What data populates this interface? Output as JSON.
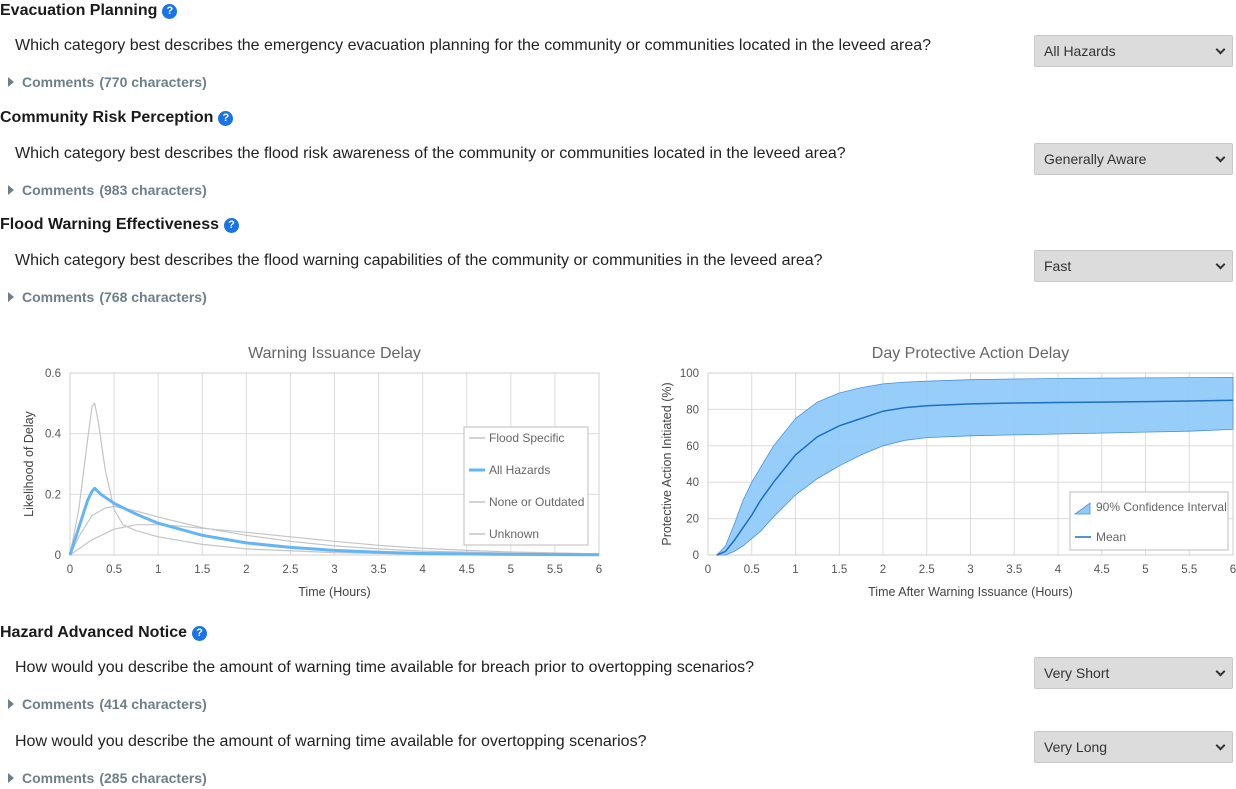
{
  "sections": {
    "evacuation": {
      "title": "Evacuation Planning",
      "question": "Which category best describes the emergency evacuation planning for the community or communities located in the leveed area?",
      "selected": "All Hazards",
      "comments_label": "Comments",
      "comments_count": "(770 characters)"
    },
    "risk_perception": {
      "title": "Community Risk Perception",
      "question": "Which category best describes the flood risk awareness of the community or communities located in the leveed area?",
      "selected": "Generally Aware",
      "comments_label": "Comments",
      "comments_count": "(983 characters)"
    },
    "flood_warning": {
      "title": "Flood Warning Effectiveness",
      "question": "Which category best describes the flood warning capabilities of the community or communities in the leveed area?",
      "selected": "Fast",
      "comments_label": "Comments",
      "comments_count": "(768 characters)"
    },
    "hazard_notice": {
      "title": "Hazard Advanced Notice",
      "q1": "How would you describe the amount of warning time available for breach prior to overtopping scenarios?",
      "q1_selected": "Very Short",
      "q1_comments_label": "Comments",
      "q1_comments_count": "(414 characters)",
      "q2": "How would you describe the amount of warning time available for overtopping scenarios?",
      "q2_selected": "Very Long",
      "q2_comments_label": "Comments",
      "q2_comments_count": "(285 characters)"
    }
  },
  "help_glyph": "?",
  "colors": {
    "accent_blue": "#1a73e8",
    "series_highlight": "#64b5f6",
    "series_muted": "#c4c4c4",
    "band_fill": "#90caf9",
    "mean_line": "#1e6fc0"
  },
  "chart_data": [
    {
      "type": "line",
      "title": "Warning Issuance Delay",
      "xlabel": "Time (Hours)",
      "ylabel": "Likelihood of Delay",
      "xlim": [
        0,
        6
      ],
      "ylim": [
        0,
        0.6
      ],
      "xticks": [
        "0",
        "0.5",
        "1",
        "1.5",
        "2",
        "2.5",
        "3",
        "3.5",
        "4",
        "4.5",
        "5",
        "5.5",
        "6"
      ],
      "yticks": [
        "0",
        "0.2",
        "0.4",
        "0.6"
      ],
      "grid": true,
      "legend_position": "right",
      "series": [
        {
          "name": "Flood Specific",
          "highlight": false,
          "points": [
            [
              0,
              0
            ],
            [
              0.1,
              0.15
            ],
            [
              0.2,
              0.38
            ],
            [
              0.25,
              0.49
            ],
            [
              0.28,
              0.5
            ],
            [
              0.32,
              0.44
            ],
            [
              0.4,
              0.28
            ],
            [
              0.5,
              0.15
            ],
            [
              0.6,
              0.1
            ],
            [
              0.75,
              0.08
            ],
            [
              1,
              0.06
            ],
            [
              1.5,
              0.035
            ],
            [
              2,
              0.02
            ],
            [
              3,
              0.008
            ],
            [
              4,
              0.003
            ],
            [
              5,
              0.001
            ],
            [
              6,
              0.0
            ]
          ]
        },
        {
          "name": "All Hazards",
          "highlight": true,
          "points": [
            [
              0,
              0
            ],
            [
              0.1,
              0.09
            ],
            [
              0.2,
              0.18
            ],
            [
              0.25,
              0.21
            ],
            [
              0.28,
              0.22
            ],
            [
              0.35,
              0.2
            ],
            [
              0.5,
              0.17
            ],
            [
              0.75,
              0.135
            ],
            [
              1,
              0.105
            ],
            [
              1.5,
              0.065
            ],
            [
              2,
              0.04
            ],
            [
              2.5,
              0.025
            ],
            [
              3,
              0.015
            ],
            [
              3.5,
              0.009
            ],
            [
              4,
              0.005
            ],
            [
              5,
              0.002
            ],
            [
              6,
              0.0005
            ]
          ]
        },
        {
          "name": "None or Outdated",
          "highlight": false,
          "points": [
            [
              0,
              0
            ],
            [
              0.1,
              0.06
            ],
            [
              0.25,
              0.13
            ],
            [
              0.4,
              0.155
            ],
            [
              0.5,
              0.16
            ],
            [
              0.75,
              0.145
            ],
            [
              1,
              0.125
            ],
            [
              1.5,
              0.09
            ],
            [
              2,
              0.065
            ],
            [
              2.5,
              0.045
            ],
            [
              3,
              0.03
            ],
            [
              3.5,
              0.02
            ],
            [
              4,
              0.013
            ],
            [
              5,
              0.006
            ],
            [
              6,
              0.003
            ]
          ]
        },
        {
          "name": "Unknown",
          "highlight": false,
          "points": [
            [
              0,
              0
            ],
            [
              0.25,
              0.05
            ],
            [
              0.5,
              0.085
            ],
            [
              0.75,
              0.1
            ],
            [
              1,
              0.1
            ],
            [
              1.25,
              0.095
            ],
            [
              1.5,
              0.088
            ],
            [
              2,
              0.075
            ],
            [
              2.5,
              0.06
            ],
            [
              3,
              0.045
            ],
            [
              3.5,
              0.032
            ],
            [
              4,
              0.022
            ],
            [
              4.5,
              0.015
            ],
            [
              5,
              0.01
            ],
            [
              6,
              0.004
            ]
          ]
        }
      ]
    },
    {
      "type": "area",
      "title": "Day Protective Action Delay",
      "xlabel": "Time After Warning Issuance (Hours)",
      "ylabel": "Protective Action Initiated (%)",
      "xlim": [
        0,
        6
      ],
      "ylim": [
        0,
        100
      ],
      "xticks": [
        "0",
        "0.5",
        "1",
        "1.5",
        "2",
        "2.5",
        "3",
        "3.5",
        "4",
        "4.5",
        "5",
        "5.5",
        "6"
      ],
      "yticks": [
        "0",
        "20",
        "40",
        "60",
        "80",
        "100"
      ],
      "grid": true,
      "legend_position": "bottom-right",
      "band_name": "90% Confidence Interval",
      "mean_name": "Mean",
      "x": [
        0.1,
        0.2,
        0.3,
        0.4,
        0.5,
        0.6,
        0.75,
        1,
        1.25,
        1.5,
        1.75,
        2,
        2.25,
        2.5,
        3,
        3.5,
        4,
        4.5,
        5,
        5.5,
        6
      ],
      "upper": [
        0,
        5,
        17,
        30,
        40,
        48,
        60,
        75,
        84,
        89,
        92,
        94,
        95,
        95.5,
        96.3,
        96.7,
        97,
        97.2,
        97.3,
        97.5,
        97.6
      ],
      "mean": [
        0,
        2,
        8,
        15,
        22,
        30,
        40,
        55,
        65,
        71,
        75,
        79,
        81,
        82,
        83,
        83.5,
        83.8,
        84,
        84.3,
        84.6,
        85
      ],
      "lower": [
        0,
        0,
        2,
        5,
        9,
        13,
        21,
        33,
        42,
        49,
        55,
        60,
        63,
        64.5,
        65.5,
        66,
        66.5,
        67,
        67.5,
        68,
        69
      ]
    }
  ]
}
